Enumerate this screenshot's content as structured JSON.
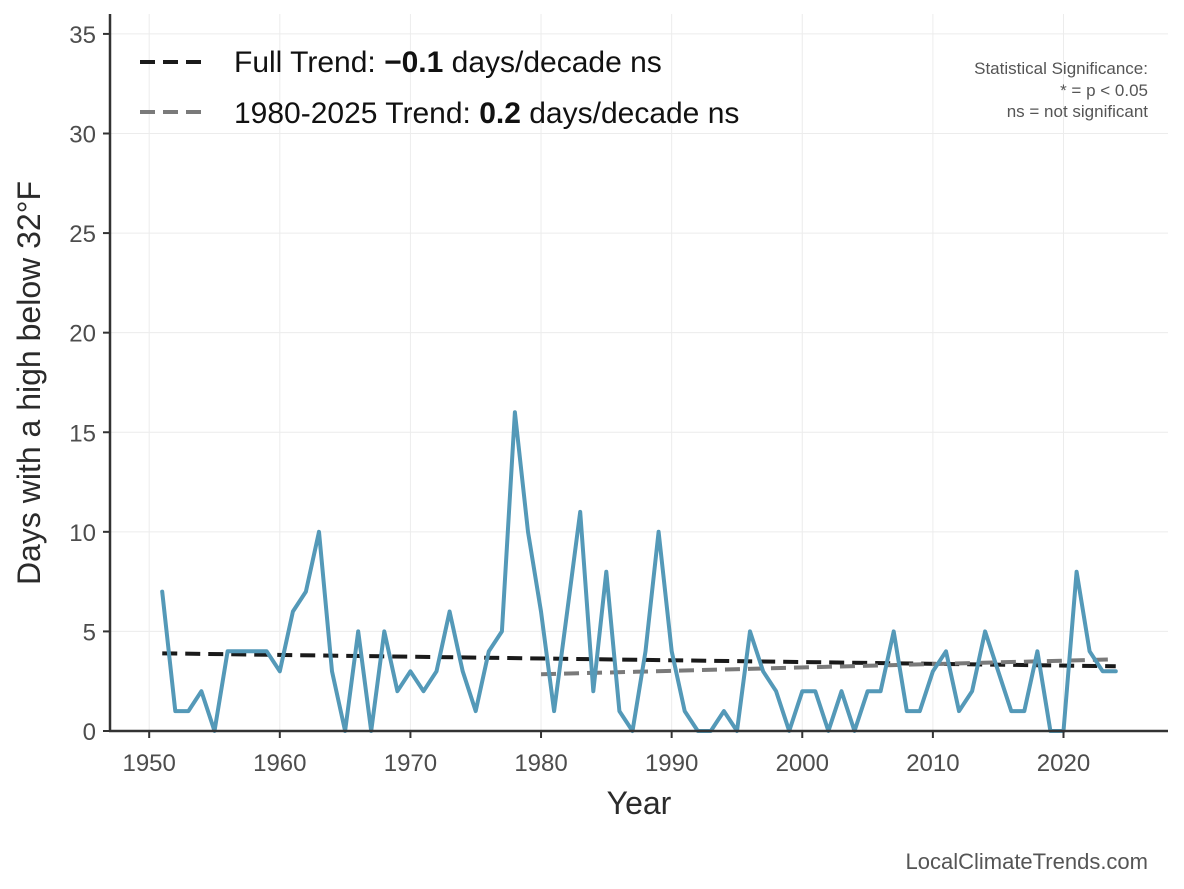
{
  "chart_data": {
    "type": "line",
    "xlabel": "Year",
    "ylabel": "Days with a high below 32°F",
    "xlim": [
      1947,
      2028
    ],
    "ylim": [
      0,
      36
    ],
    "xticks": [
      1950,
      1960,
      1970,
      1980,
      1990,
      2000,
      2010,
      2020
    ],
    "yticks": [
      0,
      5,
      10,
      15,
      20,
      25,
      30,
      35
    ],
    "grid": true,
    "legend_position": "top-left",
    "series": [
      {
        "name": "",
        "color": "#5499b8",
        "x": [
          1951,
          1952,
          1953,
          1954,
          1955,
          1956,
          1957,
          1958,
          1959,
          1960,
          1961,
          1962,
          1963,
          1964,
          1965,
          1966,
          1967,
          1968,
          1969,
          1970,
          1971,
          1972,
          1973,
          1974,
          1975,
          1976,
          1977,
          1978,
          1979,
          1980,
          1981,
          1982,
          1983,
          1984,
          1985,
          1986,
          1987,
          1988,
          1989,
          1990,
          1991,
          1992,
          1993,
          1994,
          1995,
          1996,
          1997,
          1998,
          1999,
          2000,
          2001,
          2002,
          2003,
          2004,
          2005,
          2006,
          2007,
          2008,
          2009,
          2010,
          2011,
          2012,
          2013,
          2014,
          2015,
          2016,
          2017,
          2018,
          2019,
          2020,
          2021,
          2022,
          2023,
          2024
        ],
        "y": [
          7,
          1,
          1,
          2,
          0,
          4,
          4,
          4,
          4,
          3,
          6,
          7,
          10,
          3,
          0,
          5,
          0,
          5,
          2,
          3,
          2,
          3,
          6,
          3,
          1,
          4,
          5,
          16,
          10,
          6,
          1,
          6,
          11,
          2,
          8,
          1,
          0,
          4,
          10,
          4,
          1,
          0,
          0,
          1,
          0,
          5,
          3,
          2,
          0,
          2,
          2,
          0,
          2,
          0,
          2,
          2,
          5,
          1,
          1,
          3,
          4,
          1,
          2,
          5,
          3,
          1,
          1,
          4,
          0,
          0,
          8,
          4,
          3,
          3
        ]
      }
    ],
    "trends": [
      {
        "label_prefix": "Full Trend: ",
        "label_value": "−0.1",
        "label_suffix": " days/decade ns",
        "color": "#1a1a1a",
        "x": [
          1951,
          2024
        ],
        "y": [
          3.9,
          3.25
        ]
      },
      {
        "label_prefix": "1980-2025 Trend: ",
        "label_value": "0.2",
        "label_suffix": " days/decade ns",
        "color": "#7a7a7a",
        "x": [
          1980,
          2024
        ],
        "y": [
          2.85,
          3.6
        ]
      }
    ],
    "significance_note": {
      "title": "Statistical Significance:",
      "line1": "* = p < 0.05",
      "line2": "ns = not significant"
    },
    "source": "LocalClimateTrends.com"
  }
}
